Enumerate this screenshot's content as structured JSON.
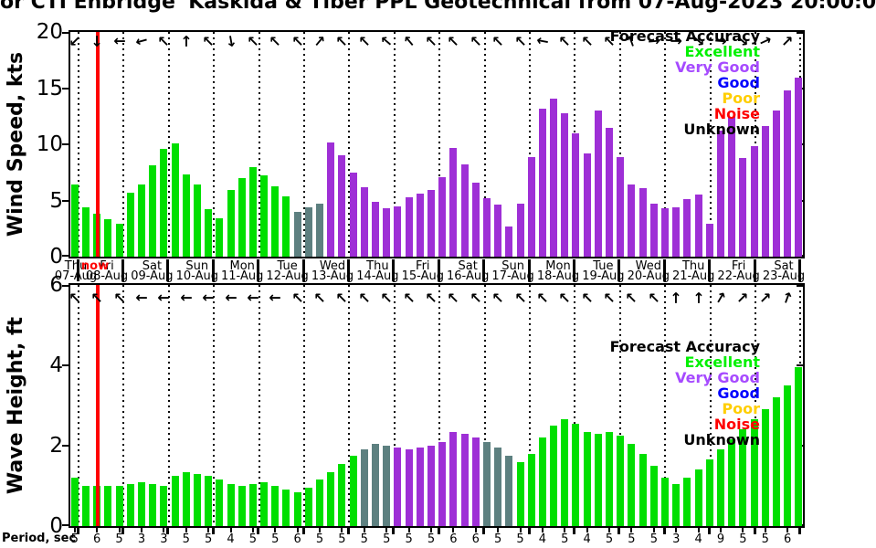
{
  "title": "or CTI Enbridge 'Kaskida & Tiber PPL Geotechnical from 07-Aug-2023 20:00:0",
  "legend": {
    "title": "Forecast Accuracy",
    "items": [
      {
        "label": "Excellent",
        "color": "#00f000"
      },
      {
        "label": "Very Good",
        "color": "#a64aff"
      },
      {
        "label": "Good",
        "color": "#0000ff"
      },
      {
        "label": "Poor",
        "color": "#ffce00"
      },
      {
        "label": "Noise",
        "color": "#ff0000"
      },
      {
        "label": "Unknown",
        "color": "#000000"
      }
    ]
  },
  "bar_colors": {
    "g": "#00df00",
    "s": "#5d8080",
    "p": "#9e2fd6"
  },
  "color_meaning": {
    "g": "Excellent",
    "s": "Unknown",
    "p": "Very Good"
  },
  "xaxis": {
    "now_label": "now",
    "now_color": "#ff0000",
    "days": [
      {
        "name": "Thu",
        "date": "07-Aug"
      },
      {
        "name": "Fri",
        "date": "08-Aug"
      },
      {
        "name": "Sat",
        "date": "09-Aug"
      },
      {
        "name": "Sun",
        "date": "10-Aug"
      },
      {
        "name": "Mon",
        "date": "11-Aug"
      },
      {
        "name": "Tue",
        "date": "12-Aug"
      },
      {
        "name": "Wed",
        "date": "13-Aug"
      },
      {
        "name": "Thu",
        "date": "14-Aug"
      },
      {
        "name": "Fri",
        "date": "15-Aug"
      },
      {
        "name": "Sat",
        "date": "16-Aug"
      },
      {
        "name": "Sun",
        "date": "17-Aug"
      },
      {
        "name": "Mon",
        "date": "18-Aug"
      },
      {
        "name": "Tue",
        "date": "19-Aug"
      },
      {
        "name": "Wed",
        "date": "20-Aug"
      },
      {
        "name": "Thu",
        "date": "21-Aug"
      },
      {
        "name": "Fri",
        "date": "22-Aug"
      },
      {
        "name": "Sat",
        "date": "23-Aug"
      }
    ]
  },
  "period_axis": {
    "label": "Period, sec"
  },
  "chart_data": [
    {
      "type": "bar",
      "title": "Wind Speed forecast",
      "ylabel": "Wind Speed, kts",
      "ylim": [
        0,
        20
      ],
      "yticks": [
        0,
        5,
        10,
        15,
        20
      ],
      "bars_per_day": 4,
      "categories": [
        "Thu 07-Aug",
        "Fri 08-Aug",
        "Sat 09-Aug",
        "Sun 10-Aug",
        "Mon 11-Aug",
        "Tue 12-Aug",
        "Wed 13-Aug",
        "Thu 14-Aug",
        "Fri 15-Aug",
        "Sat 16-Aug",
        "Sun 17-Aug",
        "Mon 18-Aug",
        "Tue 19-Aug",
        "Wed 20-Aug",
        "Thu 21-Aug",
        "Fri 22-Aug",
        "Sat 23-Aug"
      ],
      "values": [
        6.4,
        4.4,
        3.8,
        3.3,
        2.9,
        5.7,
        6.4,
        8.1,
        9.6,
        10.1,
        7.3,
        6.4,
        4.2,
        3.4,
        5.9,
        7.0,
        8.0,
        7.2,
        6.3,
        5.4,
        4.0,
        4.4,
        4.7,
        10.2,
        9.0,
        7.5,
        6.2,
        4.9,
        4.3,
        4.5,
        5.3,
        5.6,
        5.9,
        7.1,
        9.7,
        8.2,
        6.6,
        5.2,
        4.6,
        2.7,
        4.7,
        8.9,
        13.2,
        14.1,
        12.8,
        11.0,
        9.2,
        13.0,
        11.5,
        8.9,
        6.4,
        6.1,
        4.7,
        4.3,
        4.4,
        5.1,
        5.5,
        2.9,
        11.2,
        12.4,
        8.8,
        9.8,
        11.6,
        13.0,
        14.8,
        15.9
      ],
      "accuracy_codes": "ggggggggggggggggggggsssppppppppppppppppppppppppppppppppppppppppppp",
      "arrow_angles_deg": [
        135,
        90,
        180,
        165,
        -135,
        -90,
        -135,
        80,
        -135,
        -135,
        -135,
        -50,
        -135,
        -135,
        -140,
        -130,
        -135,
        -135,
        -135,
        -135,
        -135,
        -170,
        -135,
        -135,
        -135,
        -110,
        -5,
        0,
        40,
        5,
        40,
        -25,
        -45
      ]
    },
    {
      "type": "bar",
      "title": "Wave Height forecast",
      "ylabel": "Wave Height, ft",
      "ylim": [
        0,
        6
      ],
      "yticks": [
        0,
        2,
        4,
        6
      ],
      "bars_per_day": 4,
      "categories": [
        "Thu 07-Aug",
        "Fri 08-Aug",
        "Sat 09-Aug",
        "Sun 10-Aug",
        "Mon 11-Aug",
        "Tue 12-Aug",
        "Wed 13-Aug",
        "Thu 14-Aug",
        "Fri 15-Aug",
        "Sat 16-Aug",
        "Sun 17-Aug",
        "Mon 18-Aug",
        "Tue 19-Aug",
        "Wed 20-Aug",
        "Thu 21-Aug",
        "Fri 22-Aug",
        "Sat 23-Aug"
      ],
      "values": [
        1.2,
        1.0,
        1.0,
        1.0,
        1.0,
        1.05,
        1.1,
        1.05,
        1.0,
        1.25,
        1.35,
        1.3,
        1.25,
        1.15,
        1.05,
        1.0,
        1.05,
        1.1,
        1.0,
        0.9,
        0.85,
        0.95,
        1.15,
        1.35,
        1.55,
        1.75,
        1.9,
        2.05,
        2.0,
        1.95,
        1.9,
        1.95,
        2.0,
        2.1,
        2.35,
        2.3,
        2.2,
        2.1,
        1.95,
        1.75,
        1.6,
        1.8,
        2.2,
        2.5,
        2.65,
        2.55,
        2.35,
        2.3,
        2.35,
        2.25,
        2.05,
        1.8,
        1.5,
        1.2,
        1.05,
        1.2,
        1.4,
        1.65,
        1.9,
        2.15,
        2.4,
        2.65,
        2.9,
        3.2,
        3.5,
        3.95
      ],
      "accuracy_codes": "ggggggggggggggggggggggggggsssppppppppsssgggggggggggggggggggggggggg",
      "arrow_angles_deg": [
        -135,
        -135,
        -135,
        180,
        180,
        180,
        180,
        180,
        180,
        180,
        -135,
        -135,
        -135,
        -135,
        -135,
        -135,
        -135,
        -135,
        -135,
        -135,
        -135,
        -135,
        -135,
        -135,
        -135,
        -135,
        -135,
        -90,
        -90,
        -60,
        -45,
        -45,
        -70
      ],
      "period_sec": [
        5,
        6,
        5,
        3,
        3,
        5,
        5,
        4,
        5,
        5,
        6,
        5,
        5,
        5,
        5,
        5,
        5,
        6,
        6,
        5,
        5,
        4,
        5,
        4,
        5,
        5,
        5,
        3,
        4,
        9,
        5,
        5,
        6
      ]
    }
  ]
}
